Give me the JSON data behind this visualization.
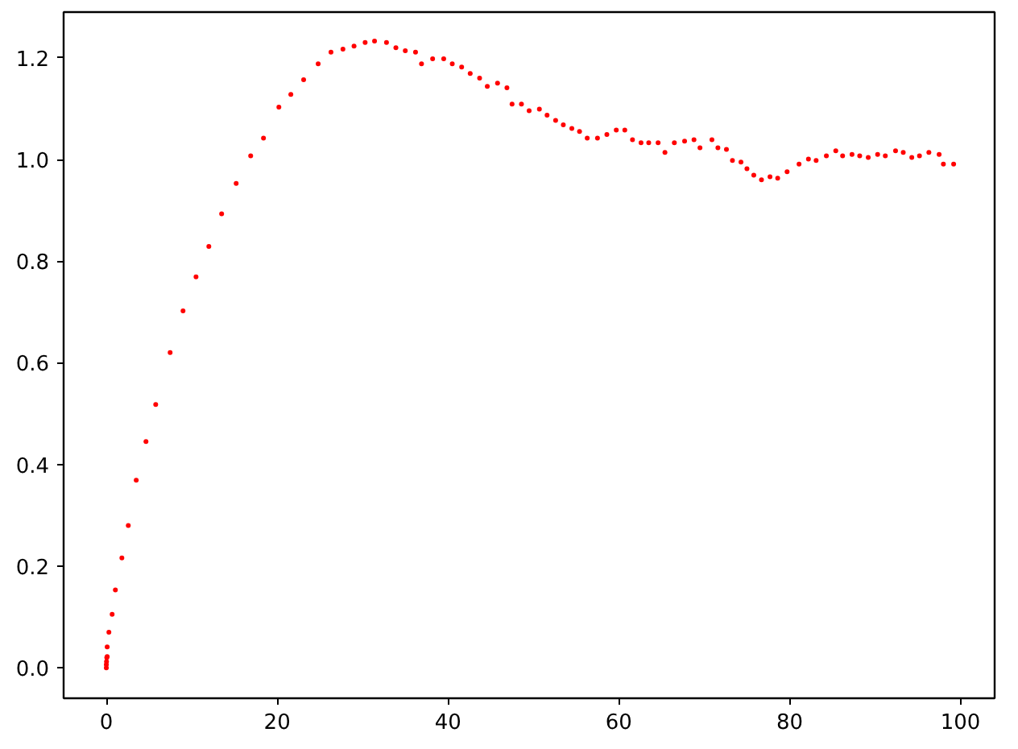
{
  "chart_data": {
    "type": "scatter",
    "marker": "circle",
    "grid": false,
    "x": [
      0,
      0,
      0.02,
      0.05,
      0.1,
      0.1,
      0.3,
      0.68,
      1.06,
      1.82,
      2.57,
      3.5,
      4.64,
      5.78,
      7.47,
      8.98,
      10.5,
      12.0,
      13.5,
      15.2,
      16.9,
      18.4,
      20.2,
      21.6,
      23.1,
      24.8,
      26.3,
      27.7,
      29.0,
      30.3,
      31.4,
      32.8,
      33.9,
      35.0,
      36.2,
      36.9,
      38.2,
      39.5,
      40.5,
      41.6,
      42.6,
      43.7,
      44.6,
      45.8,
      46.9,
      47.5,
      48.6,
      49.5,
      50.7,
      51.6,
      52.6,
      53.5,
      54.5,
      55.4,
      56.3,
      57.5,
      58.6,
      59.7,
      60.7,
      61.6,
      62.6,
      63.5,
      64.6,
      65.4,
      66.5,
      67.7,
      68.8,
      69.5,
      70.9,
      71.6,
      72.6,
      73.3,
      74.3,
      75.0,
      75.8,
      76.7,
      77.7,
      78.6,
      79.7,
      81.1,
      82.2,
      83.1,
      84.3,
      85.4,
      86.2,
      87.3,
      88.2,
      89.2,
      90.3,
      91.2,
      92.4,
      93.3,
      94.3,
      95.2,
      96.3,
      97.5,
      98.0,
      99.2
    ],
    "series": [
      {
        "color": "#ff0000",
        "values": [
          0,
          0.006,
          0.012,
          0.02,
          0.022,
          0.041,
          0.07,
          0.105,
          0.153,
          0.216,
          0.28,
          0.369,
          0.445,
          0.518,
          0.62,
          0.702,
          0.769,
          0.829,
          0.893,
          0.953,
          1.007,
          1.042,
          1.103,
          1.128,
          1.157,
          1.188,
          1.211,
          1.217,
          1.223,
          1.23,
          1.233,
          1.23,
          1.22,
          1.214,
          1.211,
          1.188,
          1.198,
          1.198,
          1.188,
          1.182,
          1.169,
          1.16,
          1.144,
          1.15,
          1.141,
          1.109,
          1.109,
          1.096,
          1.099,
          1.087,
          1.077,
          1.068,
          1.061,
          1.055,
          1.042,
          1.042,
          1.049,
          1.058,
          1.058,
          1.039,
          1.033,
          1.033,
          1.033,
          1.014,
          1.033,
          1.036,
          1.039,
          1.023,
          1.039,
          1.023,
          1.02,
          0.998,
          0.995,
          0.982,
          0.969,
          0.96,
          0.966,
          0.963,
          0.976,
          0.991,
          1.001,
          0.998,
          1.007,
          1.017,
          1.007,
          1.01,
          1.007,
          1.004,
          1.01,
          1.007,
          1.017,
          1.014,
          1.004,
          1.007,
          1.014,
          1.01,
          0.991,
          0.991
        ]
      }
    ],
    "xlim": [
      -5,
      104
    ],
    "ylim": [
      -0.06,
      1.29
    ],
    "xticks": [
      0,
      20,
      40,
      60,
      80,
      100
    ],
    "yticks": [
      {
        "value": 0,
        "label": "0.0"
      },
      {
        "value": 0.2,
        "label": "0.2"
      },
      {
        "value": 0.4,
        "label": "0.4"
      },
      {
        "value": 0.6,
        "label": "0.6"
      },
      {
        "value": 0.8,
        "label": "0.8"
      },
      {
        "value": 1.0,
        "label": "1.0"
      },
      {
        "value": 1.2,
        "label": "1.2"
      }
    ]
  }
}
